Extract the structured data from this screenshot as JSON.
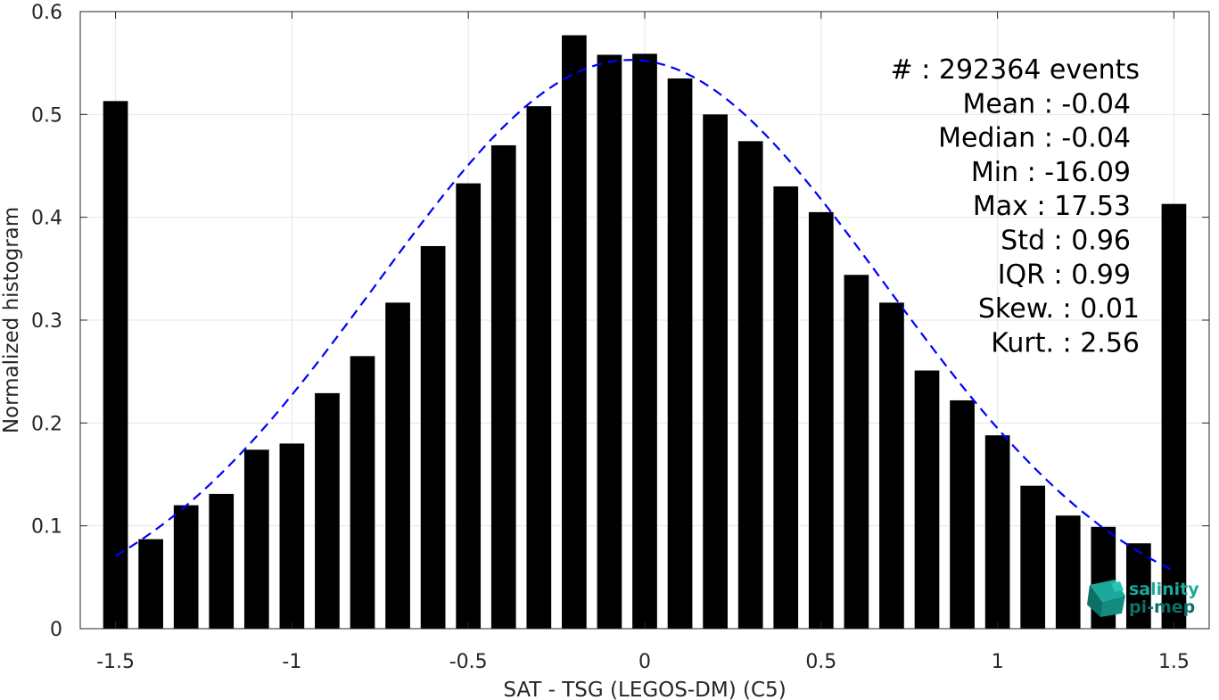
{
  "chart_data": {
    "type": "bar",
    "xlabel": "SAT - TSG (LEGOS-DM) (C5)",
    "ylabel": "Normalized histogram",
    "xlim": [
      -1.6,
      1.6
    ],
    "ylim": [
      0,
      0.6
    ],
    "xticks": [
      -1.5,
      -1,
      -0.5,
      0,
      0.5,
      1,
      1.5
    ],
    "xtick_labels": [
      "-1.5",
      "-1",
      "-0.5",
      "0",
      "0.5",
      "1",
      "1.5"
    ],
    "yticks": [
      0,
      0.1,
      0.2,
      0.3,
      0.4,
      0.5,
      0.6
    ],
    "ytick_labels": [
      "0",
      "0.1",
      "0.2",
      "0.3",
      "0.4",
      "0.5",
      "0.6"
    ],
    "grid": true,
    "bar_width": 0.07,
    "bars": {
      "x": [
        -1.5,
        -1.4,
        -1.3,
        -1.2,
        -1.1,
        -1.0,
        -0.9,
        -0.8,
        -0.7,
        -0.6,
        -0.5,
        -0.4,
        -0.3,
        -0.2,
        -0.1,
        0.0,
        0.1,
        0.2,
        0.3,
        0.4,
        0.5,
        0.6,
        0.7,
        0.8,
        0.9,
        1.0,
        1.1,
        1.2,
        1.3,
        1.4,
        1.5
      ],
      "values": [
        0.513,
        0.087,
        0.12,
        0.131,
        0.174,
        0.18,
        0.229,
        0.265,
        0.317,
        0.372,
        0.433,
        0.47,
        0.508,
        0.577,
        0.558,
        0.559,
        0.535,
        0.5,
        0.474,
        0.43,
        0.405,
        0.344,
        0.317,
        0.251,
        0.222,
        0.188,
        0.139,
        0.11,
        0.099,
        0.083,
        0.413
      ],
      "color": "#000000"
    },
    "fit_curve": {
      "style": "dashed",
      "color": "#0000ff",
      "mean": -0.04,
      "std": 0.72,
      "peak": 0.553,
      "x_range": [
        -1.5,
        1.5
      ]
    },
    "stats": [
      "#  : 292364 events",
      "Mean : -0.04",
      "Median : -0.04",
      "Min : -16.09",
      "Max : 17.53",
      "Std : 0.96",
      "IQR : 0.99",
      "Skew. : 0.01",
      "Kurt. : 2.56"
    ]
  },
  "logo": {
    "line1": "salinity",
    "line2": "pi-mep",
    "color1": "#1aa99a",
    "color2": "#0d6f66"
  }
}
